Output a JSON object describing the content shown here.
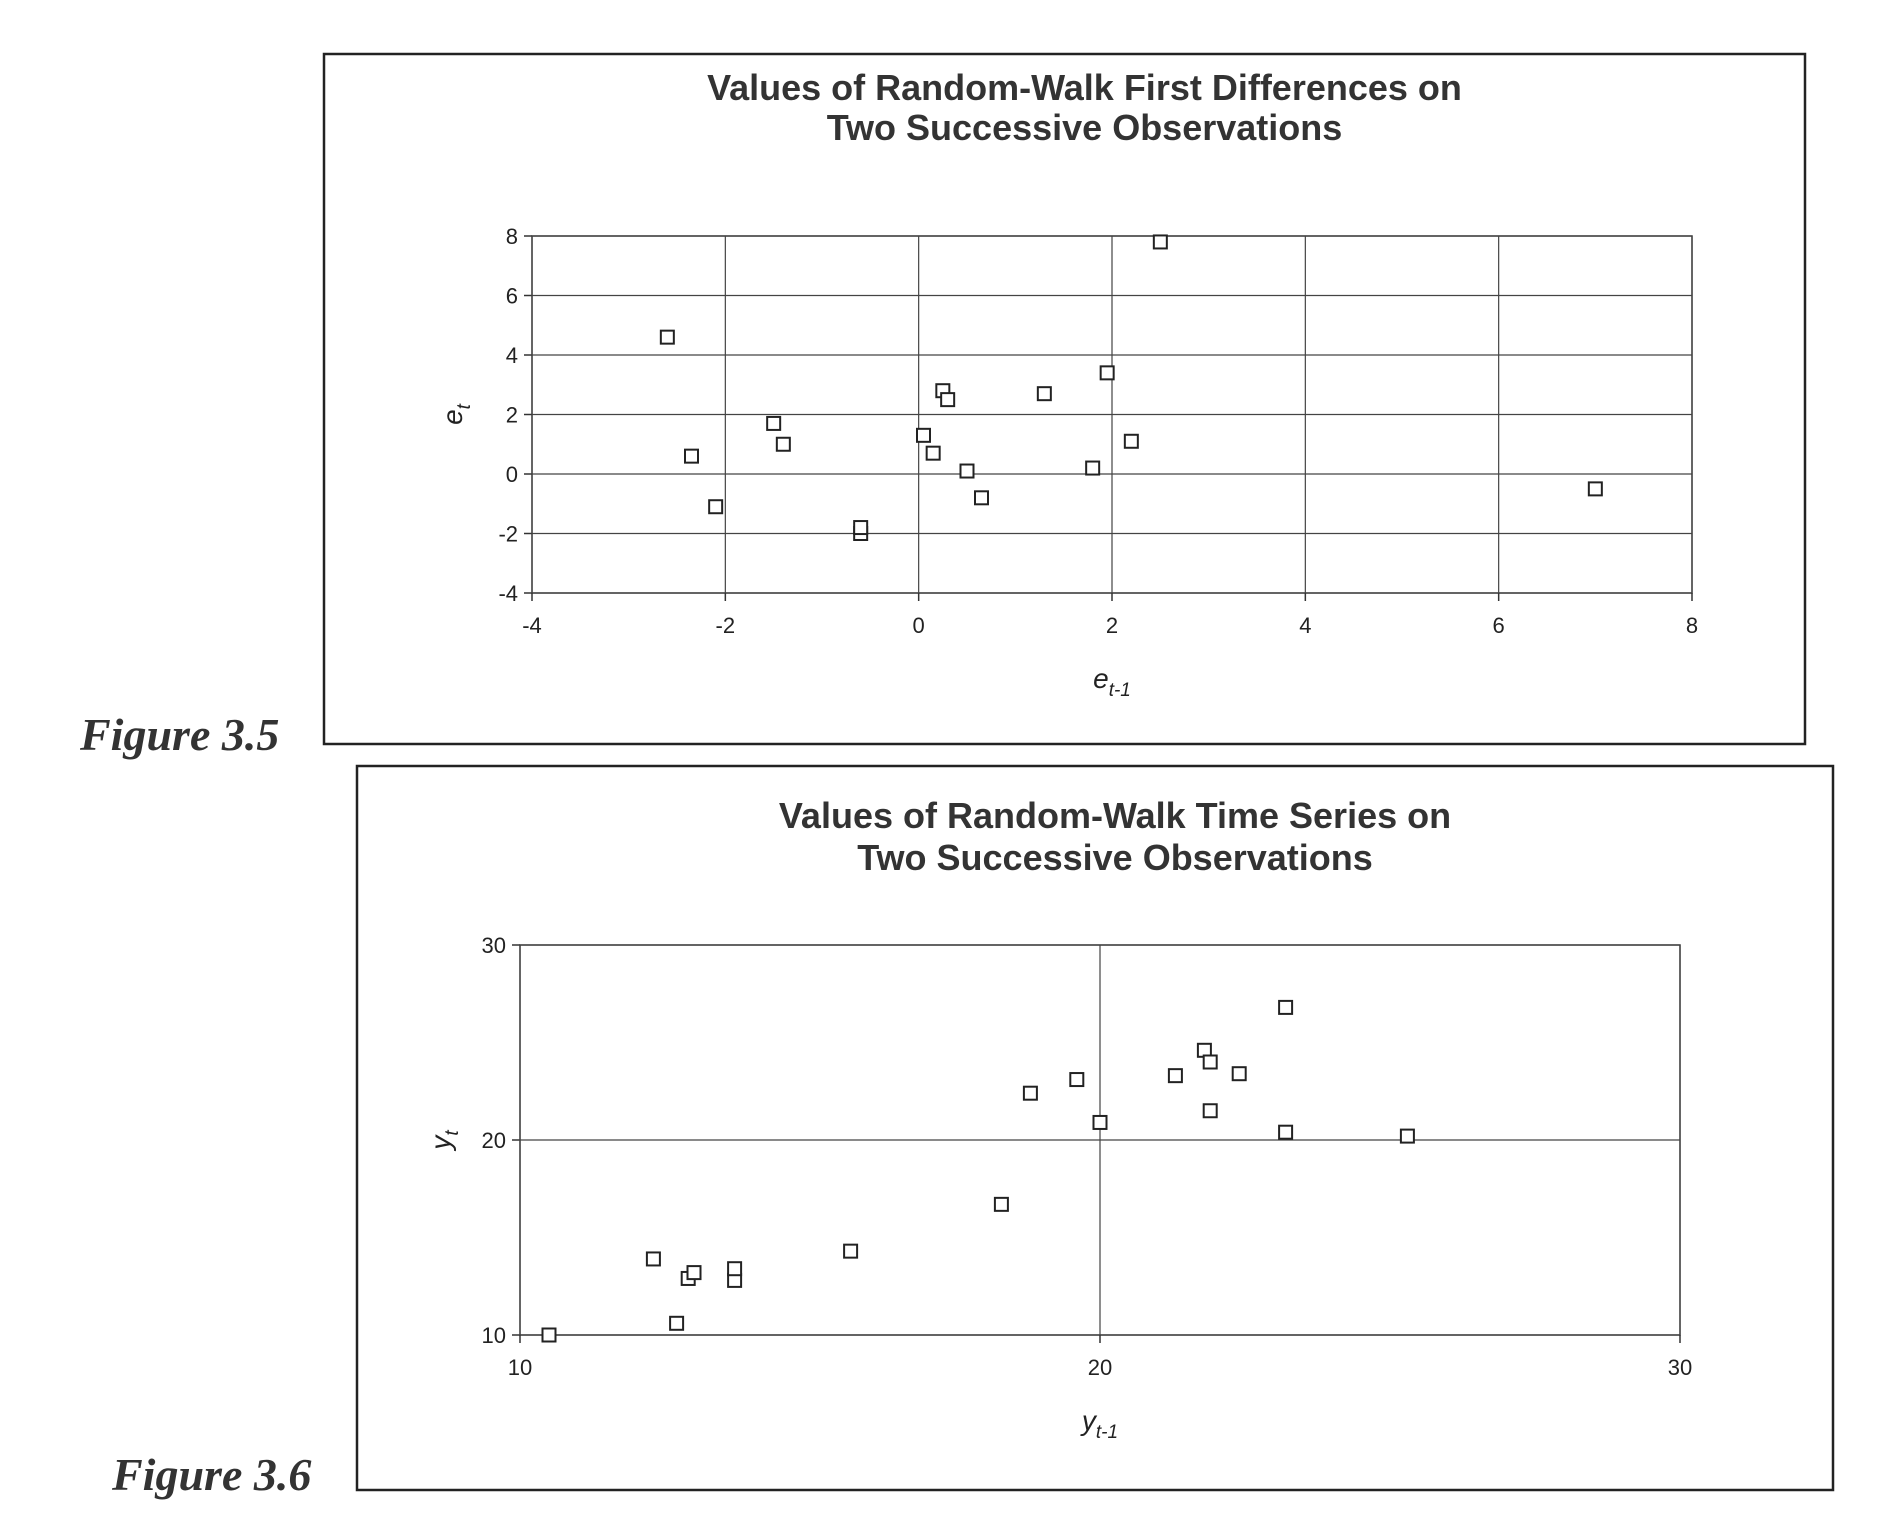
{
  "chart_data": [
    {
      "type": "scatter",
      "caption": "Figure 3.5",
      "title": [
        "Values of Random-Walk First Differences on",
        "Two Successive Observations"
      ],
      "xlabel": {
        "base": "e",
        "sub": "t-1"
      },
      "ylabel": {
        "base": "e",
        "sub": "t"
      },
      "xlim": [
        -4,
        8
      ],
      "ylim": [
        -4,
        8
      ],
      "xticks": [
        -4,
        -2,
        0,
        2,
        4,
        6,
        8
      ],
      "yticks": [
        -4,
        -2,
        0,
        2,
        4,
        6,
        8
      ],
      "grid": true,
      "marker": "square",
      "color": "#222222",
      "x": [
        -2.6,
        -2.35,
        -2.1,
        -1.5,
        -1.4,
        -0.6,
        -0.6,
        0.05,
        0.15,
        0.25,
        0.3,
        0.5,
        0.65,
        1.3,
        1.8,
        1.95,
        2.2,
        2.5,
        7.0
      ],
      "values": [
        4.6,
        0.6,
        -1.1,
        1.7,
        1.0,
        -2.0,
        -1.8,
        1.3,
        0.7,
        2.8,
        2.5,
        0.1,
        -0.8,
        2.7,
        0.2,
        3.4,
        1.1,
        7.8,
        -0.5
      ]
    },
    {
      "type": "scatter",
      "caption": "Figure 3.6",
      "title": [
        "Values of Random-Walk Time Series on",
        "Two Successive Observations"
      ],
      "xlabel": {
        "base": "y",
        "sub": "t-1"
      },
      "ylabel": {
        "base": "y",
        "sub": "t"
      },
      "xlim": [
        10,
        30
      ],
      "ylim": [
        10,
        30
      ],
      "xticks": [
        10,
        20,
        30
      ],
      "yticks": [
        10,
        20,
        30
      ],
      "grid": true,
      "marker": "square",
      "color": "#222222",
      "x": [
        10.5,
        12.3,
        12.7,
        12.9,
        13.0,
        13.7,
        13.7,
        15.7,
        18.3,
        18.8,
        19.6,
        20.0,
        21.3,
        21.8,
        21.9,
        21.9,
        22.4,
        23.2,
        23.2,
        25.3
      ],
      "values": [
        10.0,
        13.9,
        10.6,
        12.9,
        13.2,
        12.8,
        13.4,
        14.3,
        16.7,
        22.4,
        23.1,
        20.9,
        23.3,
        24.6,
        24.0,
        21.5,
        23.4,
        26.8,
        20.4,
        20.2
      ]
    }
  ]
}
